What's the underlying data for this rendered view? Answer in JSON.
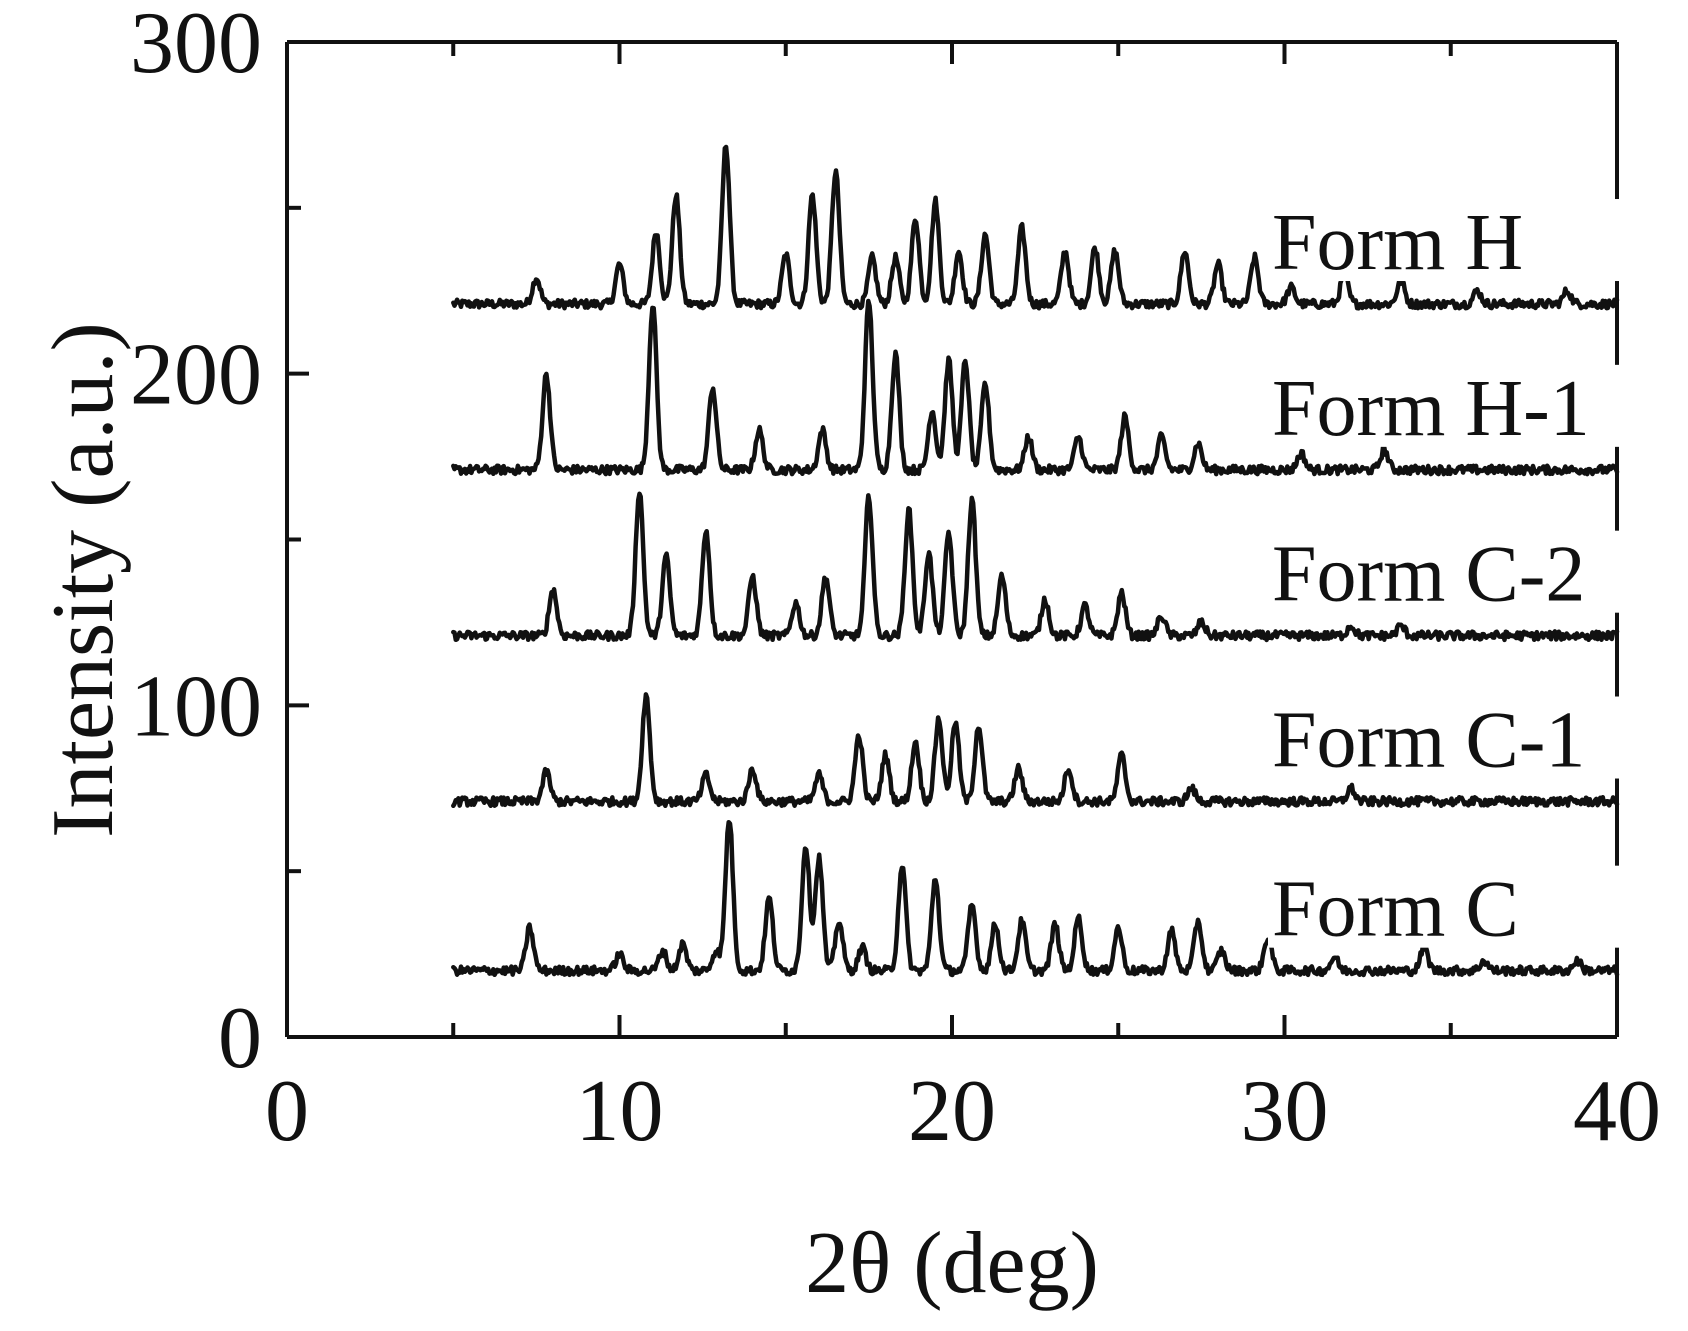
{
  "chart_data": {
    "type": "line",
    "xlabel": "2θ  (deg)",
    "ylabel": "Intensity (a.u.)",
    "xlim": [
      0,
      40
    ],
    "ylim": [
      0,
      300
    ],
    "xticks": [
      "0",
      "10",
      "20",
      "30",
      "40"
    ],
    "yticks": [
      "0",
      "100",
      "200",
      "300"
    ],
    "x_minor_ticks": [
      5,
      15,
      25,
      35
    ],
    "y_minor_ticks": [
      50,
      150,
      250
    ],
    "grid": false,
    "legend": "series labels at right of each trace",
    "x_range_data": [
      5,
      40
    ],
    "series": [
      {
        "name": "Form H",
        "baseline": 221,
        "peaks": [
          [
            7.5,
            8
          ],
          [
            10.0,
            12
          ],
          [
            11.1,
            22
          ],
          [
            11.7,
            33
          ],
          [
            13.2,
            48
          ],
          [
            15.0,
            15
          ],
          [
            15.8,
            33
          ],
          [
            16.5,
            40
          ],
          [
            17.6,
            14
          ],
          [
            18.3,
            14
          ],
          [
            18.9,
            26
          ],
          [
            19.5,
            31
          ],
          [
            20.2,
            16
          ],
          [
            21.0,
            21
          ],
          [
            22.1,
            23
          ],
          [
            23.4,
            16
          ],
          [
            24.3,
            17
          ],
          [
            24.9,
            16
          ],
          [
            27.0,
            16
          ],
          [
            28.0,
            12
          ],
          [
            29.1,
            14
          ],
          [
            30.2,
            5
          ],
          [
            31.8,
            9
          ],
          [
            33.5,
            7
          ],
          [
            35.8,
            4
          ],
          [
            38.5,
            4
          ]
        ]
      },
      {
        "name": "Form H-1",
        "baseline": 171,
        "peaks": [
          [
            7.8,
            29
          ],
          [
            11.0,
            50
          ],
          [
            12.8,
            25
          ],
          [
            14.2,
            12
          ],
          [
            16.1,
            12
          ],
          [
            17.5,
            51
          ],
          [
            18.3,
            35
          ],
          [
            19.4,
            18
          ],
          [
            19.9,
            33
          ],
          [
            20.4,
            33
          ],
          [
            21.0,
            26
          ],
          [
            22.3,
            10
          ],
          [
            23.8,
            10
          ],
          [
            25.2,
            16
          ],
          [
            26.3,
            10
          ],
          [
            27.4,
            8
          ],
          [
            30.5,
            5
          ],
          [
            33.0,
            6
          ]
        ]
      },
      {
        "name": "Form C-2",
        "baseline": 121,
        "peaks": [
          [
            8.0,
            14
          ],
          [
            10.6,
            44
          ],
          [
            11.4,
            24
          ],
          [
            12.6,
            32
          ],
          [
            14.0,
            18
          ],
          [
            15.3,
            10
          ],
          [
            16.2,
            18
          ],
          [
            17.5,
            42
          ],
          [
            18.7,
            38
          ],
          [
            19.3,
            25
          ],
          [
            19.9,
            31
          ],
          [
            20.6,
            41
          ],
          [
            21.5,
            18
          ],
          [
            22.8,
            11
          ],
          [
            24.0,
            9
          ],
          [
            25.1,
            13
          ],
          [
            26.3,
            6
          ],
          [
            27.5,
            4
          ],
          [
            32.0,
            3
          ],
          [
            33.5,
            3
          ]
        ]
      },
      {
        "name": "Form C-1",
        "baseline": 71,
        "peaks": [
          [
            7.8,
            9
          ],
          [
            10.8,
            32
          ],
          [
            12.6,
            8
          ],
          [
            14.0,
            10
          ],
          [
            16.0,
            8
          ],
          [
            17.2,
            20
          ],
          [
            18.0,
            14
          ],
          [
            18.9,
            18
          ],
          [
            19.6,
            25
          ],
          [
            20.1,
            24
          ],
          [
            20.8,
            23
          ],
          [
            22.0,
            10
          ],
          [
            23.5,
            10
          ],
          [
            25.1,
            14
          ],
          [
            27.2,
            4
          ],
          [
            32.0,
            4
          ]
        ]
      },
      {
        "name": "Form C",
        "baseline": 20,
        "peaks": [
          [
            7.3,
            13
          ],
          [
            10.0,
            5
          ],
          [
            11.3,
            6
          ],
          [
            11.9,
            8
          ],
          [
            12.9,
            6
          ],
          [
            13.3,
            46
          ],
          [
            14.5,
            22
          ],
          [
            15.6,
            38
          ],
          [
            16.0,
            34
          ],
          [
            16.6,
            15
          ],
          [
            17.3,
            7
          ],
          [
            18.5,
            32
          ],
          [
            19.5,
            28
          ],
          [
            20.6,
            20
          ],
          [
            21.3,
            14
          ],
          [
            22.1,
            15
          ],
          [
            23.1,
            14
          ],
          [
            23.8,
            16
          ],
          [
            25.0,
            13
          ],
          [
            26.6,
            12
          ],
          [
            27.4,
            15
          ],
          [
            28.1,
            6
          ],
          [
            29.5,
            10
          ],
          [
            31.5,
            4
          ],
          [
            34.2,
            7
          ],
          [
            36.0,
            3
          ],
          [
            38.8,
            3
          ]
        ]
      }
    ]
  }
}
